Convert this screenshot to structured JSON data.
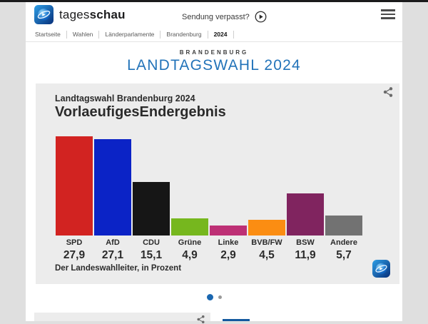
{
  "brand": {
    "name_regular": "tages",
    "name_bold": "schau"
  },
  "header": {
    "missed_link": "Sendung verpasst?"
  },
  "breadcrumb": {
    "items": [
      "Startseite",
      "Wahlen",
      "Länderparlamente",
      "Brandenburg",
      "2024"
    ]
  },
  "hero": {
    "kicker": "BRANDENBURG",
    "title": "LANDTAGSWAHL 2024",
    "title_color": "#2273b9"
  },
  "chart_card": {
    "subtitle": "Landtagswahl Brandenburg 2024",
    "title": "VorlaeufigesEndergebnis",
    "source": "Der Landeswahlleiter, in Prozent"
  },
  "chart_data": {
    "type": "bar",
    "title": "VorlaeufigesEndergebnis",
    "subtitle": "Landtagswahl Brandenburg 2024",
    "categories": [
      "SPD",
      "AfD",
      "CDU",
      "Grüne",
      "Linke",
      "BVB/FW",
      "BSW",
      "Andere"
    ],
    "values": [
      27.9,
      27.1,
      15.1,
      4.9,
      2.9,
      4.5,
      11.9,
      5.7
    ],
    "value_labels": [
      "27,9",
      "27,1",
      "15,1",
      "4,9",
      "2,9",
      "4,5",
      "11,9",
      "5,7"
    ],
    "bar_colors": [
      "#d22321",
      "#0b23c6",
      "#161616",
      "#76b71e",
      "#bd3075",
      "#fb8d12",
      "#80245f",
      "#727272"
    ],
    "ylabel": "Prozent",
    "ylim": [
      0,
      29
    ],
    "grid": false,
    "legend": false,
    "source": "Der Landeswahlleiter, in Prozent"
  },
  "carousel": {
    "dot_count": 2,
    "active_index": 0
  }
}
